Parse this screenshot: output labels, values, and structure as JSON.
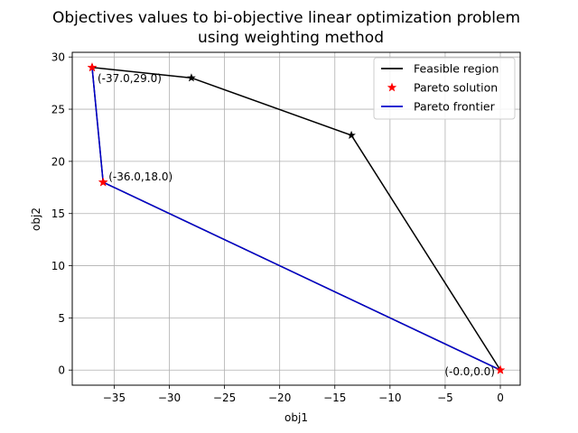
{
  "chart_data": {
    "type": "line",
    "title_lines": [
      "Objectives values to bi-objective linear optimization problem",
      "using weighting method"
    ],
    "xlabel": "obj1",
    "ylabel": "obj2",
    "xlim": [
      -38.8,
      1.8
    ],
    "ylim": [
      -1.45,
      30.45
    ],
    "xticks": [
      -35,
      -30,
      -25,
      -20,
      -15,
      -10,
      -5,
      0
    ],
    "yticks": [
      0,
      5,
      10,
      15,
      20,
      25,
      30
    ],
    "grid": true,
    "legend_position": "top-right",
    "series": [
      {
        "name": "Feasible region",
        "kind": "line-with-star-markers",
        "color": "#000000",
        "points": [
          [
            -37.0,
            29.0
          ],
          [
            -28.0,
            28.0
          ],
          [
            -13.5,
            22.5
          ],
          [
            0.0,
            0.0
          ],
          [
            -36.0,
            18.0
          ],
          [
            -37.0,
            29.0
          ]
        ]
      },
      {
        "name": "Pareto solution",
        "kind": "star-markers",
        "color": "#ff0000",
        "points": [
          [
            -37.0,
            29.0
          ],
          [
            -36.0,
            18.0
          ],
          [
            0.0,
            0.0
          ]
        ]
      },
      {
        "name": "Pareto frontier",
        "kind": "line",
        "color": "#0000cc",
        "points": [
          [
            -37.0,
            29.0
          ],
          [
            -36.0,
            18.0
          ],
          [
            0.0,
            0.0
          ]
        ]
      }
    ],
    "annotations": [
      {
        "text": "(-37.0,29.0)",
        "x": -37.0,
        "y": 29.0
      },
      {
        "text": "(-36.0,18.0)",
        "x": -36.0,
        "y": 18.0
      },
      {
        "text": "(-0.0,0.0)",
        "x": 0.0,
        "y": 0.0
      }
    ]
  }
}
